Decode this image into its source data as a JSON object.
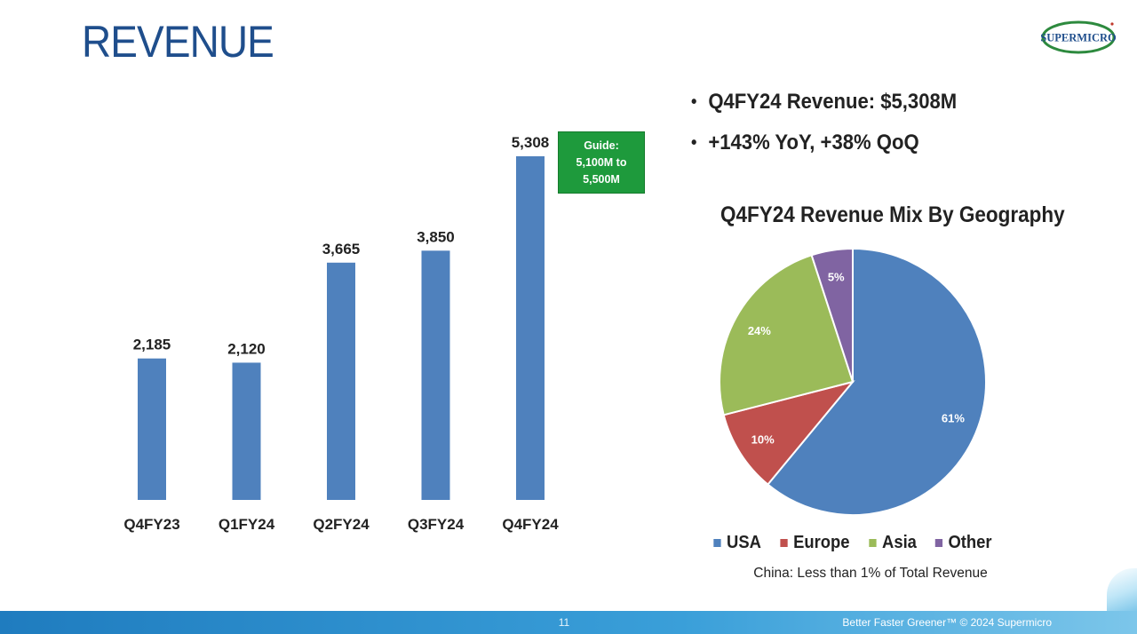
{
  "slide": {
    "title": "REVENUE",
    "logo_text": "SUPERMICRO",
    "bullets": [
      "Q4FY24 Revenue: $5,308M",
      "+143% YoY, +38% QoQ"
    ],
    "guide_lines": [
      "Guide:",
      "5,100M to",
      "5,500M"
    ],
    "pie_title": "Q4FY24 Revenue Mix By Geography",
    "note": "China: Less than 1% of Total Revenue",
    "page_number": "11",
    "footer_text": "Better Faster Greener™  © 2024 Supermicro"
  },
  "colors": {
    "bar": "#4f81bd",
    "title": "#1f4e8c",
    "guide_box": "#1e9a3c",
    "footer": "#2a8fd0"
  },
  "chart_data": [
    {
      "type": "bar",
      "categories": [
        "Q4FY23",
        "Q1FY24",
        "Q2FY24",
        "Q3FY24",
        "Q4FY24"
      ],
      "values": [
        2185,
        2120,
        3665,
        3850,
        5308
      ],
      "data_labels": [
        "2,185",
        "2,120",
        "3,665",
        "3,850",
        "5,308"
      ],
      "title": "",
      "xlabel": "",
      "ylabel": "",
      "ylim": [
        0,
        5308
      ],
      "grid": false
    },
    {
      "type": "pie",
      "title": "Q4FY24 Revenue Mix By Geography",
      "labels": [
        "USA",
        "Europe",
        "Asia",
        "Other"
      ],
      "values": [
        61,
        10,
        24,
        5
      ],
      "data_labels": [
        "61%",
        "10%",
        "24%",
        "5%"
      ],
      "colors": [
        "#4f81bd",
        "#c0504d",
        "#9bbb59",
        "#8064a2"
      ],
      "legend": "bottom"
    }
  ]
}
